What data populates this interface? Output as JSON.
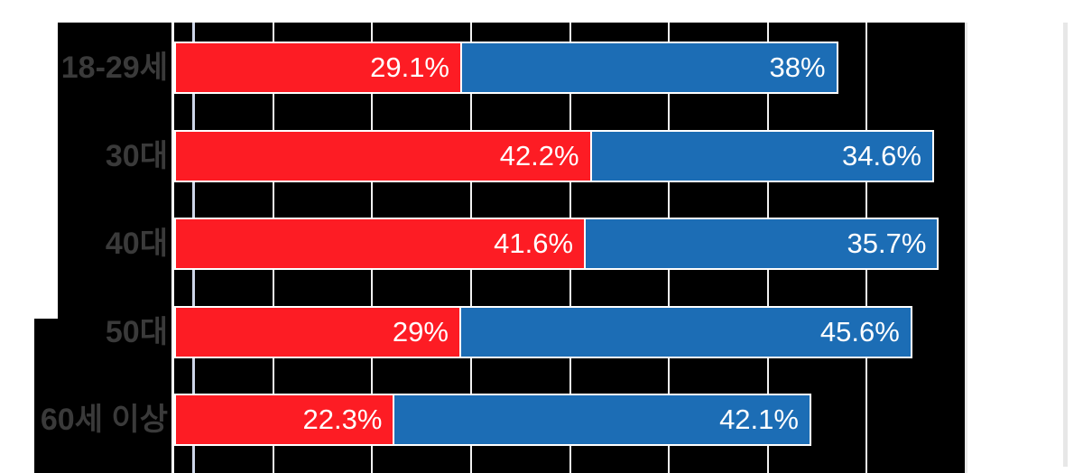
{
  "chart_data": {
    "type": "bar",
    "orientation": "horizontal",
    "stacked": true,
    "categories": [
      "18-29세",
      "30대",
      "40대",
      "50대",
      "60세 이상"
    ],
    "series": [
      {
        "name": "red",
        "color": "#fd1c24",
        "values": [
          29.1,
          42.2,
          41.6,
          29,
          22.3
        ],
        "labels": [
          "29.1%",
          "42.2%",
          "41.6%",
          "29%",
          "22.3%"
        ]
      },
      {
        "name": "blue",
        "color": "#1c6db5",
        "values": [
          38,
          34.6,
          35.7,
          45.6,
          42.1
        ],
        "labels": [
          "38%",
          "34.6%",
          "35.7%",
          "45.6%",
          "42.1%"
        ]
      }
    ],
    "xlim": [
      0,
      80
    ],
    "grid": {
      "interval": 10,
      "line_color": "#f1f1f1",
      "zero_axis_color": "#ffffff",
      "edge_line_color": "#e8e8e8",
      "tick_labels_visible": false
    },
    "reference_line_x": 2,
    "reference_line_color": "#cdd6e8",
    "plot_background": "#000000",
    "category_label_color": "#3a3a3a",
    "value_label_color": "#ffffff",
    "legend_visible": false
  }
}
